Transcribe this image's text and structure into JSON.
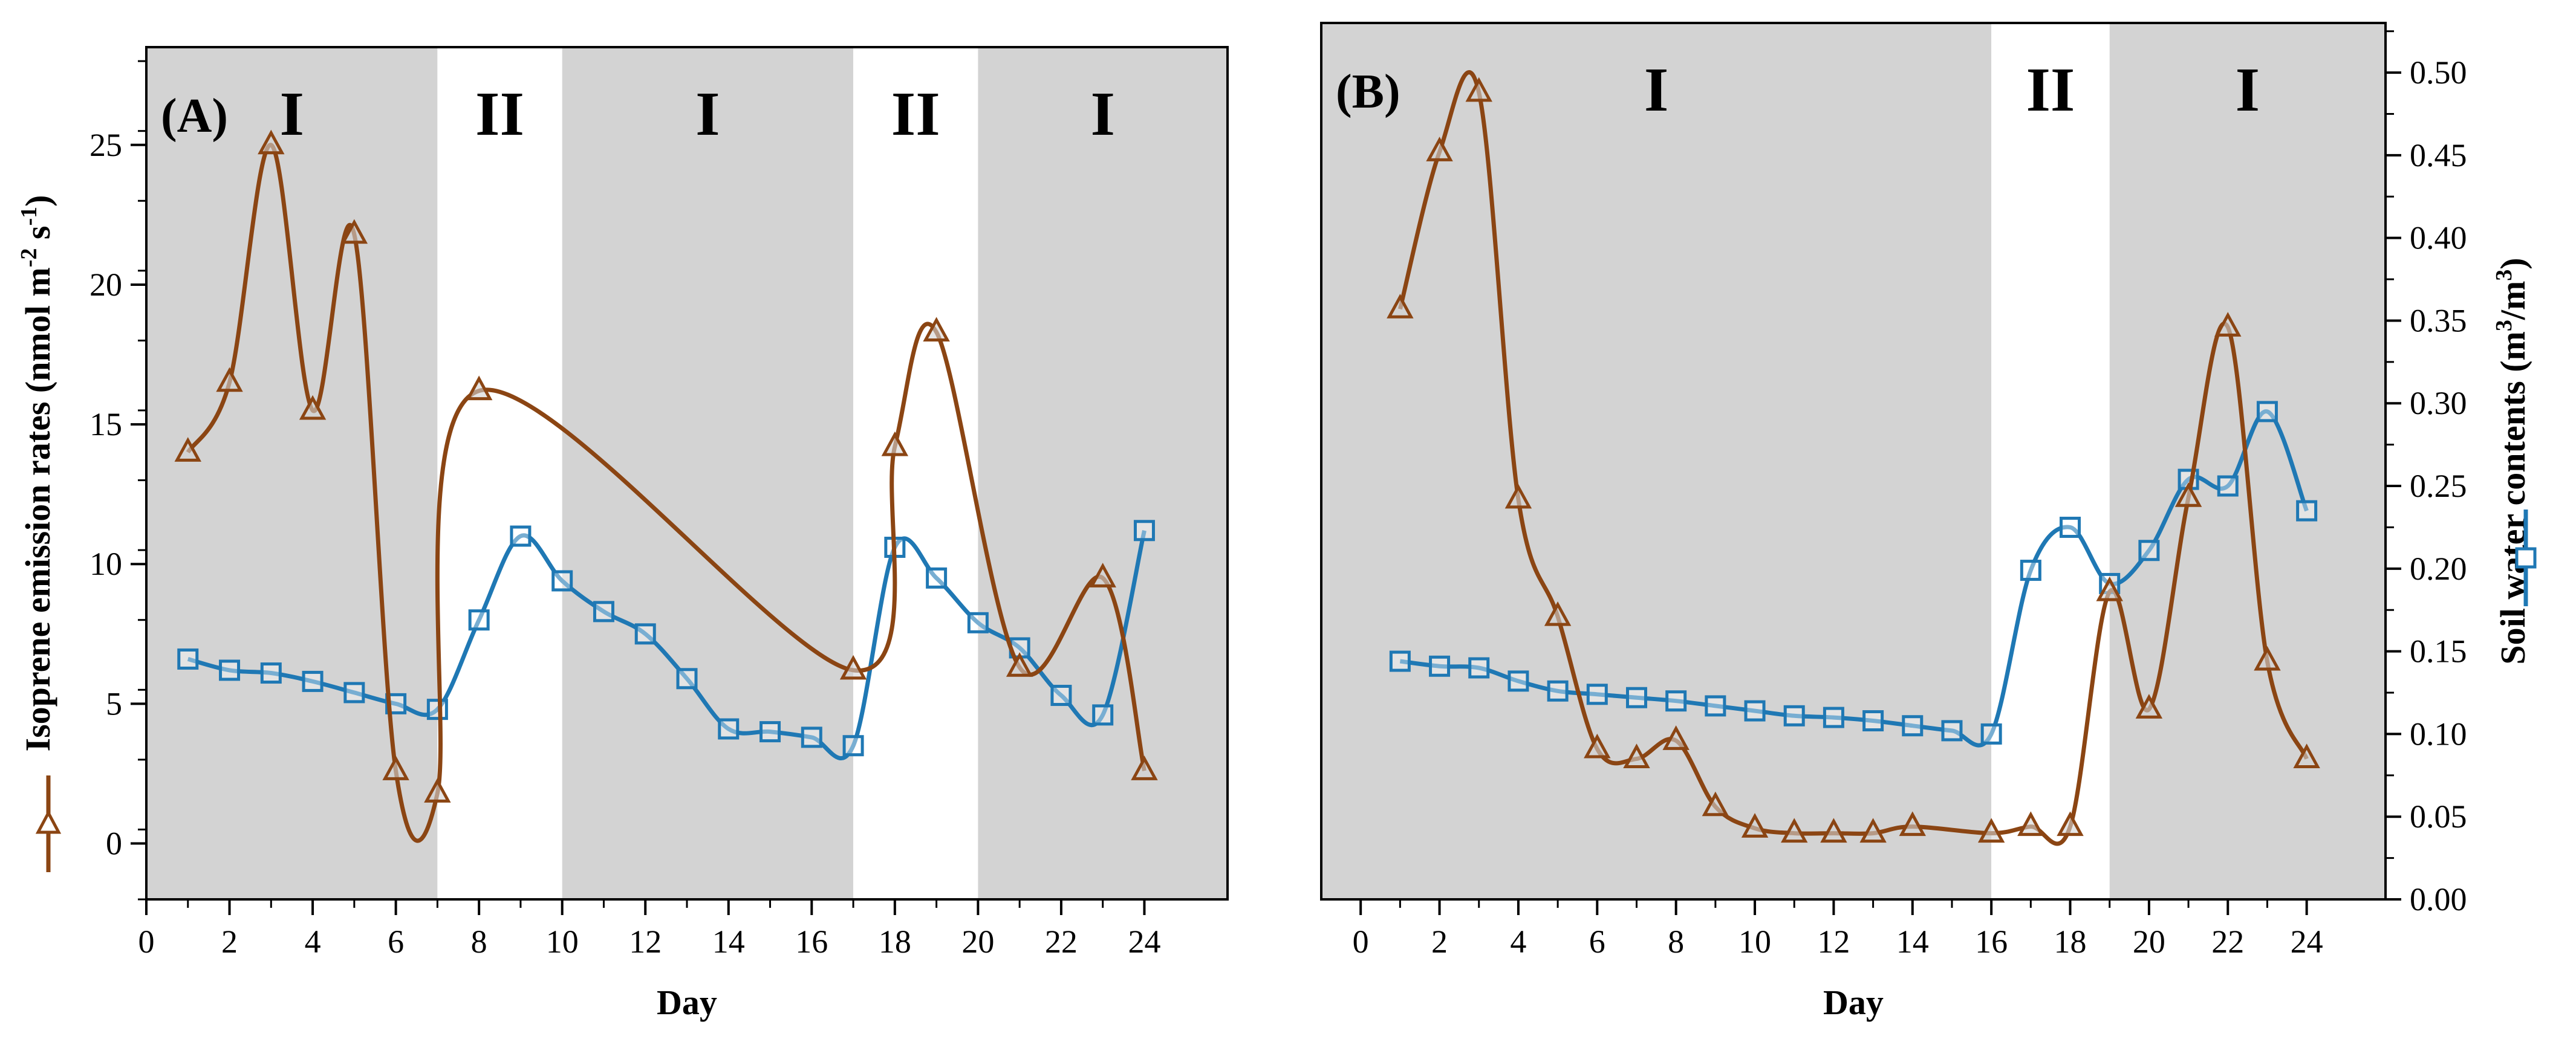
{
  "chart_data": [
    {
      "type": "line",
      "panel_label": "(A)",
      "xlabel": "Day",
      "ylabel": "Isoprene emission rates (nmol m-2 s-1)",
      "ylabel_parts": [
        "Isoprene emission rates (nmol m",
        "-2",
        " s",
        "-1",
        ")"
      ],
      "xlim": [
        0,
        26
      ],
      "ylim": [
        -2,
        28.5
      ],
      "x_ticks": [
        0,
        2,
        4,
        6,
        8,
        10,
        12,
        14,
        16,
        18,
        20,
        22,
        24
      ],
      "x_tick_labels": [
        "0",
        "2",
        "4",
        "6",
        "8",
        "10",
        "12",
        "14",
        "16",
        "18",
        "20",
        "22",
        "24"
      ],
      "y_ticks": [
        0,
        5,
        10,
        15,
        20,
        25
      ],
      "y_tick_labels": [
        "0",
        "5",
        "10",
        "15",
        "20",
        "25"
      ],
      "phases": [
        {
          "label": "I",
          "start": 0,
          "end": 7,
          "shaded": true
        },
        {
          "label": "II",
          "start": 7,
          "end": 10,
          "shaded": false
        },
        {
          "label": "I",
          "start": 10,
          "end": 17,
          "shaded": true
        },
        {
          "label": "II",
          "start": 17,
          "end": 20,
          "shaded": false
        },
        {
          "label": "I",
          "start": 20,
          "end": 26,
          "shaded": true
        }
      ],
      "series": [
        {
          "name": "Isoprene emission rates",
          "marker": "triangle",
          "color": "#8B4513",
          "x": [
            1,
            2,
            3,
            4,
            5,
            6,
            7,
            8,
            17,
            18,
            19,
            21,
            23,
            24
          ],
          "y": [
            14.0,
            16.5,
            25.0,
            15.5,
            21.8,
            2.6,
            1.8,
            16.2,
            6.2,
            14.2,
            18.3,
            6.3,
            9.5,
            2.6
          ]
        },
        {
          "name": "Soil water contents",
          "marker": "square",
          "color": "#1F78B4",
          "x": [
            1,
            2,
            3,
            4,
            5,
            6,
            7,
            8,
            9,
            10,
            11,
            12,
            13,
            14,
            15,
            16,
            17,
            18,
            19,
            20,
            21,
            22,
            23,
            24
          ],
          "y": [
            6.6,
            6.2,
            6.1,
            5.8,
            5.4,
            5.0,
            4.8,
            8.0,
            11.0,
            9.4,
            8.3,
            7.5,
            5.9,
            4.1,
            4.0,
            3.8,
            3.5,
            10.6,
            9.5,
            7.9,
            7.0,
            5.3,
            4.6,
            11.2
          ]
        }
      ]
    },
    {
      "type": "line",
      "panel_label": "(B)",
      "xlabel": "Day",
      "ylabel": "Soil water contents (m3/m3)",
      "ylabel_parts": [
        "Soil water contents (m",
        "3",
        "/m",
        "3",
        ")"
      ],
      "xlim": [
        -1,
        26
      ],
      "ylim": [
        0,
        0.53
      ],
      "x_ticks": [
        0,
        2,
        4,
        6,
        8,
        10,
        12,
        14,
        16,
        18,
        20,
        22,
        24
      ],
      "x_tick_labels": [
        "0",
        "2",
        "4",
        "6",
        "8",
        "10",
        "12",
        "14",
        "16",
        "18",
        "20",
        "22",
        "24"
      ],
      "y_ticks": [
        0,
        0.05,
        0.1,
        0.15,
        0.2,
        0.25,
        0.3,
        0.35,
        0.4,
        0.45,
        0.5
      ],
      "y_tick_labels": [
        "0.00",
        "0.05",
        "0.10",
        "0.15",
        "0.20",
        "0.25",
        "0.30",
        "0.35",
        "0.40",
        "0.45",
        "0.50"
      ],
      "phases": [
        {
          "label": "I",
          "start": -1,
          "end": 16,
          "shaded": true
        },
        {
          "label": "II",
          "start": 16,
          "end": 19,
          "shaded": false
        },
        {
          "label": "I",
          "start": 19,
          "end": 26,
          "shaded": true
        }
      ],
      "series": [
        {
          "name": "Isoprene emission rates",
          "marker": "triangle",
          "color": "#8B4513",
          "x": [
            1,
            2,
            3,
            4,
            5,
            6,
            7,
            8,
            9,
            10,
            11,
            12,
            13,
            14,
            16,
            17,
            18,
            19,
            20,
            21,
            22,
            23,
            24
          ],
          "y": [
            0.357,
            0.452,
            0.488,
            0.242,
            0.171,
            0.091,
            0.085,
            0.096,
            0.056,
            0.043,
            0.04,
            0.04,
            0.04,
            0.044,
            0.04,
            0.044,
            0.044,
            0.186,
            0.115,
            0.243,
            0.346,
            0.144,
            0.085
          ]
        },
        {
          "name": "Soil water contents",
          "marker": "square",
          "color": "#1F78B4",
          "x": [
            1,
            2,
            3,
            4,
            5,
            6,
            7,
            8,
            9,
            10,
            11,
            12,
            13,
            14,
            15,
            16,
            17,
            18,
            19,
            20,
            21,
            22,
            23,
            24
          ],
          "y": [
            0.144,
            0.141,
            0.14,
            0.132,
            0.126,
            0.124,
            0.122,
            0.12,
            0.117,
            0.114,
            0.111,
            0.11,
            0.108,
            0.105,
            0.102,
            0.1,
            0.199,
            0.225,
            0.191,
            0.211,
            0.254,
            0.25,
            0.295,
            0.235
          ]
        }
      ]
    }
  ],
  "colors": {
    "shading": "#d3d3d3",
    "isoprene": "#8B4513",
    "soil_water": "#1F78B4"
  }
}
